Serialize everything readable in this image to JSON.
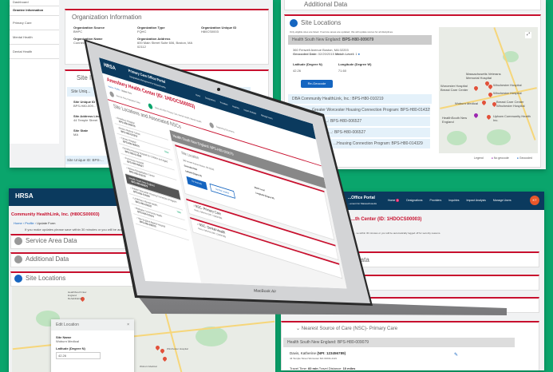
{
  "top_left": {
    "sidebar": [
      {
        "label": "Dashboard"
      },
      {
        "label": "Grantee Information",
        "active": true
      },
      {
        "label": "Primary Care"
      },
      {
        "label": "Mental Health"
      },
      {
        "label": "Dental Health"
      }
    ],
    "org_card": {
      "title": "Organization Information",
      "fields": [
        {
          "label": "Organization Source",
          "value": "BHPC"
        },
        {
          "label": "Organization Type",
          "value": "FQHC"
        },
        {
          "label": "Organization Unique ID",
          "value": "H80CS0003"
        },
        {
          "label": "Organization Name",
          "value": "Connecti..."
        },
        {
          "label": "Organization Address",
          "value": "600 Main Street Suite 606, Boston, MA 02112"
        }
      ]
    },
    "site_card": {
      "title": "Site In...",
      "row1": "Site Uniq...",
      "fields": [
        {
          "label": "Site Unique ID",
          "value": "BPS-H80-009..."
        },
        {
          "label": "Site Address Line",
          "value": "44 Temple Street"
        },
        {
          "label": "Site State",
          "value": "MA"
        }
      ],
      "row2": "Site Unique ID: BPS-..."
    }
  },
  "top_right": {
    "additional": "Additional Data",
    "site_locations": "Site Locations",
    "note": "Only eligible sites are listed. If service areas are updated, this will update scores for all disciplines.",
    "selected": {
      "name": "Health South New England:",
      "id": "BPS-H80-009079",
      "address": "360 Fenwell Avenue Boston, MA 02203",
      "geocoded_label": "Geocoded Date:",
      "geocoded": "02/20/2015",
      "match_label": "Match Level:",
      "match": "1",
      "lat_label": "Latitude (Degree N)",
      "lat": "42.26",
      "lon_label": "Longitude (Degree W)",
      "lon": "71.60",
      "button": "Re-Geocode"
    },
    "rows": [
      "DBA Community HealthLink, Inc.: BPS-H80-010219",
      "Greater Worcester Housing Connection Program: BPS-H80-014329",
      "...: BPS-H80-006527",
      "...: BPS-H80-006527",
      "...Housing Connection Program: BPS-H80-014329"
    ],
    "legend": {
      "label": "Legend",
      "no_geocode": "No geocode",
      "geocoded": "Geocoded"
    },
    "map_labels": [
      "Massachusetts Veterans Memorial Hospital",
      "Worcester Hospital Breast Care Center",
      "Winchester Hospital",
      "Winchester Hospital",
      "Breast Care Center Winchester Hospital",
      "Woburn Medical",
      "HealthSouth New England",
      "Upham Community Health Inc."
    ]
  },
  "laptop": {
    "portal": "Primary Care Office Portal",
    "subtitle": "Designations Management for Massachusetts",
    "nav": [
      "Home",
      "Designations",
      "Providers",
      "Inquiries",
      "Impact Analysis",
      "Manage Users"
    ],
    "title": "Amesbury Health Center (ID: 1HDOCS00003)",
    "breadcrumb": [
      "Home",
      "Profile",
      "Update Form"
    ],
    "steps": [
      "Service Area, Population Data",
      "Sites and NSC Primary Care, Dental Health, Mental Health",
      "Supporting Documents"
    ],
    "section": "Site Locations and Associated NSCs",
    "sites": [
      {
        "name": "Amesbury Hospital",
        "id": "BPS-H80-009079"
      },
      {
        "name": "Boston Medical Center",
        "id": "BPS-H80-010219"
      },
      {
        "name": "Carney Hospital",
        "id": "BPS-H80-009079",
        "badge": "New"
      },
      {
        "name": "Dorothy Housing Hospital for Children and Aged",
        "id": "BPS-H80-014329"
      },
      {
        "name": "Franciscan Hospital",
        "id": "BPS-H80-006527"
      },
      {
        "name": "Hebrew Rehabilitation Center",
        "id": "BPS-H80-010219"
      },
      {
        "name": "Health South New England",
        "id": "BPS-H80-009079",
        "active": true
      },
      {
        "name": "Greater Worcester Housing Connection Program",
        "id": "BPS-H80-014329"
      },
      {
        "name": "Lindemann Mental Health",
        "id": "BPS-H80-006527",
        "badge": "New"
      },
      {
        "name": "Mattapan Community Health",
        "id": "BPS-H80-010219"
      },
      {
        "name": "New England Baptist Hospital",
        "id": "BPS-H80-009079"
      }
    ],
    "detail_header": "Health South New England: BPS-H80-009079",
    "site_location": "Site Location",
    "address": "360 Fenwell Avenue Boston, MA 02203",
    "geocoded_date": "Geocoded Date",
    "match_level": "Match Level",
    "latitude": "Latitude (Degree N)",
    "longitude": "Longitude (Degree W)",
    "btn1": "Re-Geocode",
    "btn2": "Set Site Location",
    "nsc": [
      {
        "title": "NSC- Primary Care",
        "who": "Davis, Katherine (NPI: 123456789)"
      },
      {
        "title": "NSC- Dental Health",
        "who": "Davis, Katherine (NPI: 123456789)"
      }
    ],
    "brand": "MacBook Air"
  },
  "bottom_left": {
    "logo": "HRSA",
    "logo_sub": "Health Resources",
    "title": "Community HealthLink, Inc. (H80CS00003)",
    "breadcrumb": [
      "Home",
      "Profile",
      "Update Form"
    ],
    "note": "If you make updates please save within 30 minutes or you will be automatically logged off...",
    "cards": [
      "Service Area Data",
      "Additional Data",
      "Site Locations"
    ],
    "map_labels": [
      "HealthSouth New England Rehabilitation",
      "Woburn Medical",
      "Winchester Hospital"
    ],
    "dialog": {
      "title": "Edit Location",
      "site_label": "Site Name",
      "site": "Woburn Medical",
      "lat_label": "Latitude (Degree N)",
      "lat": "42.26"
    }
  },
  "bottom_right": {
    "portal": "...Office Portal",
    "subtitle": "...ement for Massachusetts",
    "nav": [
      "Home",
      "Designations",
      "Providers",
      "Inquiries",
      "Impact Analysis",
      "Manage Users"
    ],
    "home_badge": "1",
    "avatar": "KT",
    "title": "...th Center (ID: 1HDOCS00003)",
    "note": "...ve within 30 minutes or you will be automatically logged off for security reasons.",
    "card1": "...ata",
    "nsc_title": "Nearest Source of Care (NSC)- Primary Care",
    "row": "Health South New England: BPS-H80-009079",
    "provider": "Davis, Katherine",
    "npi": "(NPI: 123456789)",
    "address": "44 Temple Street Worcester MA 01604-4119",
    "travel_time_label": "Travel Time:",
    "travel_time": "60 min",
    "travel_dist_label": "Travel Distance:",
    "travel_dist": "10 miles"
  },
  "colors": {
    "background": "#0aa56c",
    "header": "#0b3a5e",
    "accent_red": "#c8102e",
    "button_blue": "#1565c0"
  }
}
